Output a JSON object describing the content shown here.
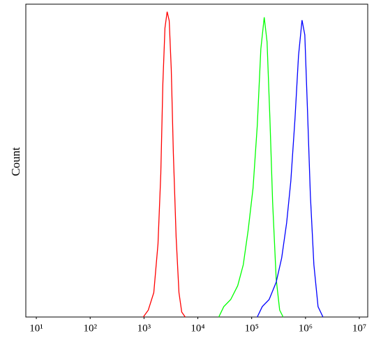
{
  "chart_data": {
    "type": "line",
    "y_label": "Count",
    "xscale": "log",
    "xlim": [
      6.38,
      14300000
    ],
    "ylim": [
      0,
      100
    ],
    "xticks": [
      {
        "value": 10,
        "label": "10¹"
      },
      {
        "value": 100,
        "label": "10²"
      },
      {
        "value": 1000,
        "label": "10³"
      },
      {
        "value": 10000,
        "label": "10⁴"
      },
      {
        "value": 100000,
        "label": "10⁵"
      },
      {
        "value": 1000000,
        "label": "10⁶"
      },
      {
        "value": 10000000,
        "label": "10⁷"
      }
    ],
    "series": [
      {
        "color": "#ff0000",
        "x": [
          970,
          1200,
          1520,
          1820,
          2050,
          2240,
          2450,
          2690,
          2940,
          3210,
          3510,
          3950,
          4460,
          5020,
          5830
        ],
        "values": [
          0,
          2.2,
          7.8,
          23.4,
          45.7,
          74.6,
          92.4,
          97.6,
          94.7,
          79.1,
          52.3,
          25.6,
          7.8,
          1.6,
          0
        ]
      },
      {
        "color": "#00ff00",
        "x": [
          24500,
          30300,
          40800,
          55000,
          69800,
          86100,
          106000,
          127000,
          148000,
          171000,
          193000,
          218000,
          245000,
          285000,
          331000,
          384000
        ],
        "values": [
          0,
          3.3,
          5.6,
          10.0,
          16.7,
          27.8,
          41.2,
          61.2,
          85.7,
          95.8,
          88.0,
          63.5,
          36.7,
          12.2,
          2.2,
          0
        ]
      },
      {
        "color": "#0000ff",
        "x": [
          127000,
          157000,
          211000,
          285000,
          361000,
          446000,
          533000,
          638000,
          741000,
          861000,
          970000,
          1090000,
          1230000,
          1430000,
          1710000,
          2110000
        ],
        "values": [
          0,
          3.3,
          5.6,
          11.1,
          18.9,
          30.1,
          43.4,
          63.5,
          83.5,
          94.9,
          90.2,
          65.7,
          39.0,
          16.7,
          3.3,
          0
        ]
      }
    ]
  }
}
